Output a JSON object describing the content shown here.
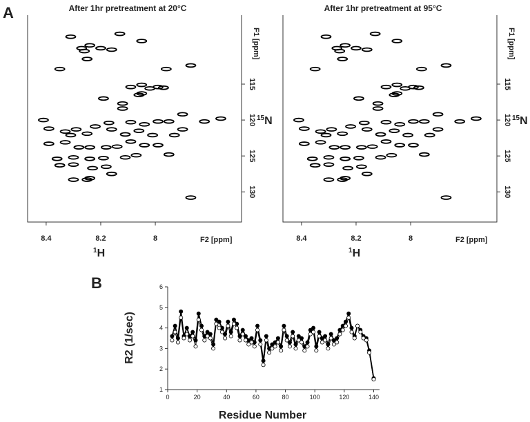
{
  "chart_data": [
    {
      "type": "scatter",
      "label": "A",
      "title": "After 1hr pretreatment at 20°C",
      "xlabel_sup": "1",
      "xlabel": "H",
      "x_axis_title": "F2 [ppm]",
      "ylabel_sup": "15",
      "ylabel": "N",
      "y_axis_title": "F1 [ppm]",
      "xlim": [
        8.468,
        7.684
      ],
      "xticks": [
        8.4,
        8.2,
        8.0
      ],
      "ylim": [
        134.2,
        105.4
      ],
      "yticks": [
        115,
        120,
        125,
        130
      ],
      "color": "#000000",
      "x": [
        8.31,
        8.13,
        8.05,
        8.24,
        8.27,
        8.2,
        8.16,
        8.26,
        8.35,
        8.25,
        7.96,
        7.87,
        8.05,
        8.02,
        7.99,
        8.09,
        8.19,
        7.97,
        8.05,
        8.06,
        8.12,
        8.12,
        7.9,
        7.82,
        7.76,
        8.41,
        8.39,
        8.33,
        8.29,
        8.22,
        8.17,
        8.09,
        8.04,
        7.95,
        7.99,
        7.9,
        8.31,
        8.25,
        8.16,
        8.11,
        8.06,
        8.01,
        7.93,
        8.39,
        8.33,
        8.28,
        8.24,
        8.18,
        8.14,
        8.09,
        8.04,
        7.99,
        8.36,
        8.3,
        8.24,
        8.19,
        8.11,
        8.07,
        7.95,
        8.3,
        8.35,
        8.23,
        8.18,
        8.16,
        8.24,
        8.3,
        8.25,
        7.87
      ],
      "y": [
        108.4,
        108.0,
        109.0,
        109.6,
        110.0,
        110.0,
        110.2,
        110.4,
        112.9,
        111.5,
        112.9,
        112.4,
        115.1,
        115.6,
        115.4,
        115.4,
        117.0,
        115.5,
        116.3,
        116.5,
        117.7,
        118.4,
        119.2,
        120.2,
        119.8,
        120.0,
        121.2,
        121.6,
        121.3,
        120.9,
        120.4,
        120.3,
        120.6,
        120.2,
        120.2,
        121.3,
        122.1,
        121.9,
        121.3,
        122.0,
        121.5,
        122.1,
        122.1,
        123.3,
        123.1,
        123.8,
        123.8,
        123.8,
        123.7,
        123.0,
        123.5,
        123.5,
        125.4,
        125.2,
        125.4,
        125.3,
        125.2,
        124.9,
        124.8,
        126.2,
        126.3,
        126.7,
        126.5,
        127.5,
        128.1,
        128.3,
        128.3,
        130.8
      ]
    },
    {
      "type": "scatter",
      "title": "After 1hr pretreatment at 95°C",
      "xlabel_sup": "1",
      "xlabel": "H",
      "x_axis_title": "F2 [ppm]",
      "ylabel_sup": "15",
      "ylabel": "N",
      "y_axis_title": "F1 [ppm]",
      "xlim": [
        8.468,
        7.684
      ],
      "xticks": [
        8.4,
        8.2,
        8.0
      ],
      "ylim": [
        134.2,
        105.4
      ],
      "yticks": [
        115,
        120,
        125,
        130
      ],
      "color": "#000000",
      "x": [
        8.31,
        8.13,
        8.05,
        8.24,
        8.27,
        8.2,
        8.16,
        8.26,
        8.35,
        8.25,
        7.96,
        7.87,
        8.05,
        8.02,
        7.99,
        8.09,
        8.19,
        7.97,
        8.05,
        8.06,
        8.12,
        8.12,
        7.9,
        7.82,
        7.76,
        8.41,
        8.39,
        8.33,
        8.29,
        8.22,
        8.17,
        8.09,
        8.04,
        7.95,
        7.99,
        7.9,
        8.31,
        8.25,
        8.16,
        8.11,
        8.06,
        8.01,
        7.93,
        8.39,
        8.33,
        8.28,
        8.24,
        8.18,
        8.14,
        8.09,
        8.04,
        7.99,
        8.36,
        8.3,
        8.24,
        8.19,
        8.11,
        8.07,
        7.95,
        8.3,
        8.35,
        8.23,
        8.18,
        8.16,
        8.24,
        8.3,
        8.25,
        7.87
      ],
      "y": [
        108.4,
        108.0,
        109.0,
        109.6,
        110.0,
        110.0,
        110.2,
        110.4,
        112.9,
        111.5,
        112.9,
        112.4,
        115.1,
        115.6,
        115.4,
        115.4,
        117.0,
        115.5,
        116.3,
        116.5,
        117.7,
        118.4,
        119.2,
        120.2,
        119.8,
        120.0,
        121.2,
        121.6,
        121.3,
        120.9,
        120.4,
        120.3,
        120.6,
        120.2,
        120.2,
        121.3,
        122.1,
        121.9,
        121.3,
        122.0,
        121.5,
        122.1,
        122.1,
        123.3,
        123.1,
        123.8,
        123.8,
        123.8,
        123.7,
        123.0,
        123.5,
        123.5,
        125.4,
        125.2,
        125.4,
        125.3,
        125.2,
        124.9,
        124.8,
        126.2,
        126.3,
        126.7,
        126.5,
        127.5,
        128.1,
        128.3,
        128.3,
        130.8
      ]
    },
    {
      "type": "line",
      "label": "B",
      "xlabel": "Residue Number",
      "ylabel": "R2 (1/sec)",
      "xlim": [
        0,
        144
      ],
      "xticks": [
        0,
        20,
        40,
        60,
        80,
        100,
        120,
        140
      ],
      "ylim": [
        1,
        6
      ],
      "yticks": [
        1,
        2,
        3,
        4,
        5,
        6
      ],
      "x": [
        3,
        5,
        7,
        9,
        11,
        13,
        15,
        17,
        19,
        21,
        23,
        25,
        27,
        29,
        31,
        33,
        35,
        37,
        39,
        41,
        43,
        45,
        47,
        49,
        51,
        53,
        55,
        57,
        59,
        61,
        63,
        65,
        67,
        69,
        71,
        73,
        75,
        77,
        79,
        81,
        83,
        85,
        87,
        89,
        91,
        93,
        95,
        97,
        99,
        101,
        103,
        105,
        107,
        109,
        111,
        113,
        115,
        117,
        119,
        121,
        123,
        125,
        127,
        129,
        131,
        133,
        135,
        137,
        140
      ],
      "series": [
        {
          "color": "#000000",
          "filled": true,
          "values": [
            3.6,
            4.1,
            3.5,
            4.8,
            3.6,
            4.0,
            3.6,
            3.8,
            3.4,
            4.7,
            4.1,
            3.6,
            3.8,
            3.7,
            3.2,
            4.4,
            4.3,
            4.0,
            3.7,
            4.3,
            3.8,
            4.4,
            4.2,
            3.6,
            3.9,
            3.6,
            3.4,
            3.5,
            3.3,
            4.1,
            3.4,
            2.4,
            3.6,
            3.0,
            3.2,
            3.3,
            3.5,
            3.1,
            4.1,
            3.6,
            3.3,
            3.8,
            3.2,
            3.6,
            3.5,
            3.1,
            3.3,
            3.9,
            4.0,
            3.1,
            3.8,
            3.5,
            3.6,
            3.2,
            3.7,
            3.4,
            3.5,
            3.9,
            4.1,
            4.3,
            4.7,
            4.0,
            3.6,
            4.1,
            3.9,
            3.6,
            3.5,
            2.9,
            1.55
          ]
        },
        {
          "color": "#000000",
          "filled": false,
          "values": [
            3.4,
            3.8,
            3.3,
            4.5,
            3.5,
            3.7,
            3.4,
            3.6,
            3.1,
            4.4,
            3.9,
            3.4,
            3.6,
            3.5,
            3.0,
            4.2,
            4.0,
            3.8,
            3.5,
            4.1,
            3.6,
            4.2,
            4.0,
            3.4,
            3.7,
            3.4,
            3.2,
            3.3,
            3.1,
            3.9,
            3.2,
            2.2,
            3.4,
            2.8,
            3.0,
            3.1,
            3.3,
            2.9,
            3.9,
            3.4,
            3.1,
            3.6,
            3.0,
            3.4,
            3.3,
            2.9,
            3.1,
            3.7,
            3.8,
            2.9,
            3.6,
            3.3,
            3.4,
            3.0,
            3.5,
            3.2,
            3.3,
            3.7,
            3.9,
            4.1,
            4.5,
            3.8,
            3.5,
            4.1,
            3.8,
            3.5,
            3.4,
            2.8,
            1.5
          ]
        }
      ]
    }
  ]
}
